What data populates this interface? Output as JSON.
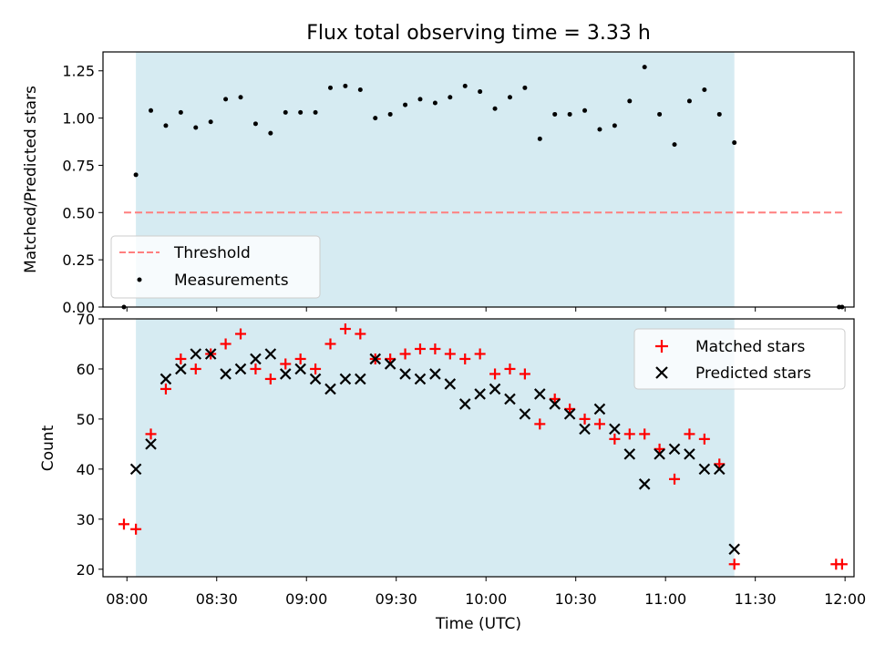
{
  "figure": {
    "title": "Flux total observing time = 3.33 h",
    "xlabel": "Time (UTC)",
    "xticks": [
      {
        "t": "08:00",
        "label": "08:00"
      },
      {
        "t": "08:30",
        "label": "08:30"
      },
      {
        "t": "09:00",
        "label": "09:00"
      },
      {
        "t": "09:30",
        "label": "09:30"
      },
      {
        "t": "10:00",
        "label": "10:00"
      },
      {
        "t": "10:30",
        "label": "10:30"
      },
      {
        "t": "11:00",
        "label": "11:00"
      },
      {
        "t": "11:30",
        "label": "11:30"
      },
      {
        "t": "12:00",
        "label": "12:00"
      }
    ],
    "shaded_span": {
      "start": "08:03",
      "end": "11:23",
      "color": "#add8e6",
      "alpha": 0.5
    },
    "xlim": [
      "07:52",
      "12:03"
    ]
  },
  "chart_data": [
    {
      "type": "scatter",
      "ylabel": "Matched/Predicted stars",
      "ylim": [
        0,
        1.35
      ],
      "yticks": [
        "0.00",
        "0.25",
        "0.50",
        "0.75",
        "1.00",
        "1.25"
      ],
      "legend": {
        "placement": "lower-left",
        "entries": [
          "Threshold",
          "Measurements"
        ]
      },
      "threshold": {
        "name": "Threshold",
        "y": 0.5,
        "x_start": "07:59",
        "x_end": "11:59",
        "color": "#ff7f7f",
        "style": "dashed"
      },
      "series": [
        {
          "name": "Measurements",
          "color": "#000000",
          "marker": "dot",
          "x": [
            "07:59",
            "08:03",
            "08:08",
            "08:13",
            "08:18",
            "08:23",
            "08:28",
            "08:33",
            "08:38",
            "08:43",
            "08:48",
            "08:53",
            "08:58",
            "09:03",
            "09:08",
            "09:13",
            "09:18",
            "09:23",
            "09:28",
            "09:33",
            "09:38",
            "09:43",
            "09:48",
            "09:53",
            "09:58",
            "10:03",
            "10:08",
            "10:13",
            "10:18",
            "10:23",
            "10:28",
            "10:33",
            "10:38",
            "10:43",
            "10:48",
            "10:53",
            "10:58",
            "11:03",
            "11:08",
            "11:13",
            "11:18",
            "11:23",
            "11:58",
            "11:59"
          ],
          "y": [
            0.0,
            0.7,
            1.04,
            0.96,
            1.03,
            0.95,
            0.98,
            1.1,
            1.11,
            0.97,
            0.92,
            1.03,
            1.03,
            1.03,
            1.16,
            1.17,
            1.15,
            1.0,
            1.02,
            1.07,
            1.1,
            1.08,
            1.11,
            1.17,
            1.14,
            1.05,
            1.11,
            1.16,
            0.89,
            1.02,
            1.02,
            1.04,
            0.94,
            0.96,
            1.09,
            1.27,
            1.02,
            0.86,
            1.09,
            1.15,
            1.02,
            0.87,
            0.0,
            0.0
          ]
        }
      ]
    },
    {
      "type": "scatter",
      "ylabel": "Count",
      "ylim": [
        18.5,
        70
      ],
      "yticks": [
        "20",
        "30",
        "40",
        "50",
        "60",
        "70"
      ],
      "legend": {
        "placement": "top-right",
        "entries": [
          "Matched stars",
          "Predicted stars"
        ]
      },
      "series": [
        {
          "name": "Matched stars",
          "color": "#ff0000",
          "marker": "plus",
          "x": [
            "07:59",
            "08:03",
            "08:08",
            "08:13",
            "08:18",
            "08:23",
            "08:28",
            "08:33",
            "08:38",
            "08:43",
            "08:48",
            "08:53",
            "08:58",
            "09:03",
            "09:08",
            "09:13",
            "09:18",
            "09:23",
            "09:28",
            "09:33",
            "09:38",
            "09:43",
            "09:48",
            "09:53",
            "09:58",
            "10:03",
            "10:08",
            "10:13",
            "10:18",
            "10:23",
            "10:28",
            "10:33",
            "10:38",
            "10:43",
            "10:48",
            "10:53",
            "10:58",
            "11:03",
            "11:08",
            "11:13",
            "11:18",
            "11:23",
            "11:57",
            "11:59"
          ],
          "y": [
            29,
            28,
            47,
            56,
            62,
            60,
            63,
            65,
            67,
            60,
            58,
            61,
            62,
            60,
            65,
            68,
            67,
            62,
            62,
            63,
            64,
            64,
            63,
            62,
            63,
            59,
            60,
            59,
            49,
            54,
            52,
            50,
            49,
            46,
            47,
            47,
            44,
            38,
            47,
            46,
            41,
            21,
            21,
            21
          ]
        },
        {
          "name": "Predicted stars",
          "color": "#000000",
          "marker": "x",
          "x": [
            "08:03",
            "08:08",
            "08:13",
            "08:18",
            "08:23",
            "08:28",
            "08:33",
            "08:38",
            "08:43",
            "08:48",
            "08:53",
            "08:58",
            "09:03",
            "09:08",
            "09:13",
            "09:18",
            "09:23",
            "09:28",
            "09:33",
            "09:38",
            "09:43",
            "09:48",
            "09:53",
            "09:58",
            "10:03",
            "10:08",
            "10:13",
            "10:18",
            "10:23",
            "10:28",
            "10:33",
            "10:38",
            "10:43",
            "10:48",
            "10:53",
            "10:58",
            "11:03",
            "11:08",
            "11:13",
            "11:18",
            "11:23"
          ],
          "y": [
            40,
            45,
            58,
            60,
            63,
            63,
            59,
            60,
            62,
            63,
            59,
            60,
            58,
            56,
            58,
            58,
            62,
            61,
            59,
            58,
            59,
            57,
            53,
            55,
            56,
            54,
            51,
            55,
            53,
            51,
            48,
            52,
            48,
            43,
            37,
            43,
            44,
            43,
            40,
            40,
            24
          ]
        }
      ]
    }
  ]
}
